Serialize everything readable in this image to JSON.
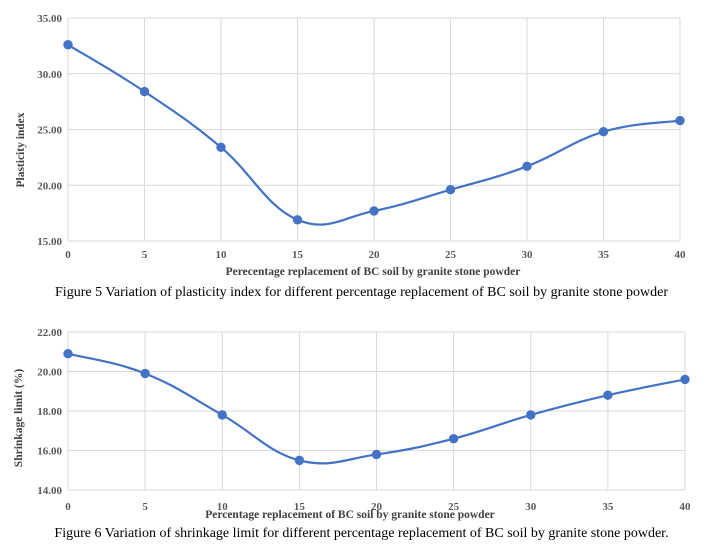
{
  "figures": [
    {
      "caption": "Figure 5 Variation of plasticity index for different percentage replacement of BC soil by granite stone powder",
      "chart_data": {
        "type": "line",
        "x": [
          0,
          5,
          10,
          15,
          20,
          25,
          30,
          35,
          40
        ],
        "series": [
          {
            "values": [
              32.6,
              28.4,
              23.4,
              16.9,
              17.7,
              19.6,
              21.7,
              24.8,
              25.8
            ]
          }
        ],
        "xlabel": "Perecentage replacement of BC soil by granite stone powder",
        "ylabel": "Plasticity index",
        "xticks": [
          "0",
          "5",
          "10",
          "15",
          "20",
          "25",
          "30",
          "35",
          "40"
        ],
        "yticks": [
          "15.00",
          "20.00",
          "25.00",
          "30.00",
          "35.00"
        ],
        "ylim": [
          15,
          35
        ],
        "xlim": [
          0,
          40
        ],
        "grid": true,
        "smooth": true,
        "color": "#4472C4",
        "gridColor": "#D9D9D9"
      }
    },
    {
      "caption": "Figure 6 Variation of shrinkage limit for different percentage replacement of BC soil by granite stone powder.",
      "chart_data": {
        "type": "line",
        "x": [
          0,
          5,
          10,
          15,
          20,
          25,
          30,
          35,
          40
        ],
        "series": [
          {
            "values": [
              20.9,
              19.9,
              17.8,
              15.5,
              15.8,
              16.6,
              17.8,
              18.8,
              19.6
            ]
          }
        ],
        "xlabel": "Percentage replacement of BC soil by granite stone powder",
        "ylabel": "Shrinkage limit (%)",
        "xticks": [
          "0",
          "5",
          "10",
          "15",
          "20",
          "25",
          "30",
          "35",
          "40"
        ],
        "yticks": [
          "14.00",
          "16.00",
          "18.00",
          "20.00",
          "22.00"
        ],
        "ylim": [
          14,
          22
        ],
        "xlim": [
          0,
          40
        ],
        "grid": true,
        "smooth": true,
        "color": "#4472C4",
        "gridColor": "#D9D9D9"
      }
    }
  ]
}
